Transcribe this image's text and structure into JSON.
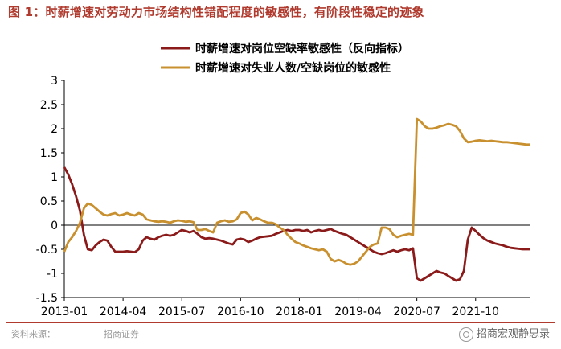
{
  "header": {
    "title": "图 1：时薪增速对劳动力市场结构性错配程度的敏感性，有阶段性稳定的迹象"
  },
  "footer": {
    "source": "资料来源：",
    "source_org": "招商证券",
    "watermark": "招商宏观静思录"
  },
  "chart_data": {
    "type": "line",
    "title": "",
    "xlabel": "",
    "ylabel": "",
    "ylim": [
      -1.5,
      3
    ],
    "yticks": [
      "3",
      "2.5",
      "2",
      "1.5",
      "1",
      "0.5",
      "0",
      "-0.5",
      "-1",
      "-1.5"
    ],
    "xticks": [
      "2013-01",
      "2014-04",
      "2015-07",
      "2016-10",
      "2018-01",
      "2019-04",
      "2020-07",
      "2021-10"
    ],
    "xlim": [
      "2013-01",
      "2022-12"
    ],
    "grid": false,
    "legend_position": "top",
    "series": [
      {
        "name": "时薪增速对岗位空缺率敏感性（反向指标）",
        "color": "#8b1a1a",
        "points": [
          [
            "2013-01",
            1.2
          ],
          [
            "2013-02",
            1.05
          ],
          [
            "2013-03",
            0.85
          ],
          [
            "2013-04",
            0.6
          ],
          [
            "2013-05",
            0.3
          ],
          [
            "2013-06",
            -0.2
          ],
          [
            "2013-07",
            -0.5
          ],
          [
            "2013-08",
            -0.52
          ],
          [
            "2013-09",
            -0.42
          ],
          [
            "2013-10",
            -0.35
          ],
          [
            "2013-11",
            -0.3
          ],
          [
            "2013-12",
            -0.32
          ],
          [
            "2014-01",
            -0.45
          ],
          [
            "2014-02",
            -0.55
          ],
          [
            "2014-03",
            -0.55
          ],
          [
            "2014-04",
            -0.55
          ],
          [
            "2014-05",
            -0.54
          ],
          [
            "2014-06",
            -0.55
          ],
          [
            "2014-07",
            -0.56
          ],
          [
            "2014-08",
            -0.5
          ],
          [
            "2014-09",
            -0.32
          ],
          [
            "2014-10",
            -0.25
          ],
          [
            "2014-11",
            -0.28
          ],
          [
            "2014-12",
            -0.3
          ],
          [
            "2015-01",
            -0.25
          ],
          [
            "2015-02",
            -0.22
          ],
          [
            "2015-03",
            -0.2
          ],
          [
            "2015-04",
            -0.22
          ],
          [
            "2015-05",
            -0.2
          ],
          [
            "2015-06",
            -0.15
          ],
          [
            "2015-07",
            -0.1
          ],
          [
            "2015-08",
            -0.12
          ],
          [
            "2015-09",
            -0.15
          ],
          [
            "2015-10",
            -0.12
          ],
          [
            "2015-11",
            -0.18
          ],
          [
            "2015-12",
            -0.25
          ],
          [
            "2016-01",
            -0.28
          ],
          [
            "2016-02",
            -0.27
          ],
          [
            "2016-03",
            -0.28
          ],
          [
            "2016-04",
            -0.3
          ],
          [
            "2016-05",
            -0.32
          ],
          [
            "2016-06",
            -0.35
          ],
          [
            "2016-07",
            -0.38
          ],
          [
            "2016-08",
            -0.4
          ],
          [
            "2016-09",
            -0.3
          ],
          [
            "2016-10",
            -0.28
          ],
          [
            "2016-11",
            -0.3
          ],
          [
            "2016-12",
            -0.35
          ],
          [
            "2017-01",
            -0.32
          ],
          [
            "2017-02",
            -0.28
          ],
          [
            "2017-03",
            -0.25
          ],
          [
            "2017-04",
            -0.24
          ],
          [
            "2017-05",
            -0.23
          ],
          [
            "2017-06",
            -0.22
          ],
          [
            "2017-07",
            -0.18
          ],
          [
            "2017-08",
            -0.15
          ],
          [
            "2017-09",
            -0.12
          ],
          [
            "2017-10",
            -0.1
          ],
          [
            "2017-11",
            -0.12
          ],
          [
            "2017-12",
            -0.1
          ],
          [
            "2018-01",
            -0.1
          ],
          [
            "2018-02",
            -0.12
          ],
          [
            "2018-03",
            -0.1
          ],
          [
            "2018-04",
            -0.15
          ],
          [
            "2018-05",
            -0.12
          ],
          [
            "2018-06",
            -0.1
          ],
          [
            "2018-07",
            -0.12
          ],
          [
            "2018-08",
            -0.1
          ],
          [
            "2018-09",
            -0.08
          ],
          [
            "2018-10",
            -0.12
          ],
          [
            "2018-11",
            -0.15
          ],
          [
            "2018-12",
            -0.18
          ],
          [
            "2019-01",
            -0.2
          ],
          [
            "2019-02",
            -0.25
          ],
          [
            "2019-03",
            -0.3
          ],
          [
            "2019-04",
            -0.35
          ],
          [
            "2019-05",
            -0.4
          ],
          [
            "2019-06",
            -0.45
          ],
          [
            "2019-07",
            -0.5
          ],
          [
            "2019-08",
            -0.55
          ],
          [
            "2019-09",
            -0.58
          ],
          [
            "2019-10",
            -0.6
          ],
          [
            "2019-11",
            -0.58
          ],
          [
            "2019-12",
            -0.55
          ],
          [
            "2020-01",
            -0.52
          ],
          [
            "2020-02",
            -0.55
          ],
          [
            "2020-03",
            -0.52
          ],
          [
            "2020-04",
            -0.5
          ],
          [
            "2020-05",
            -0.52
          ],
          [
            "2020-06",
            -0.48
          ],
          [
            "2020-07",
            -1.1
          ],
          [
            "2020-08",
            -1.15
          ],
          [
            "2020-09",
            -1.1
          ],
          [
            "2020-10",
            -1.05
          ],
          [
            "2020-11",
            -1.0
          ],
          [
            "2020-12",
            -0.95
          ],
          [
            "2021-01",
            -0.98
          ],
          [
            "2021-02",
            -1.0
          ],
          [
            "2021-03",
            -1.05
          ],
          [
            "2021-04",
            -1.1
          ],
          [
            "2021-05",
            -1.15
          ],
          [
            "2021-06",
            -1.12
          ],
          [
            "2021-07",
            -0.95
          ],
          [
            "2021-08",
            -0.3
          ],
          [
            "2021-09",
            -0.05
          ],
          [
            "2021-10",
            -0.12
          ],
          [
            "2021-11",
            -0.2
          ],
          [
            "2021-12",
            -0.27
          ],
          [
            "2022-01",
            -0.32
          ],
          [
            "2022-02",
            -0.35
          ],
          [
            "2022-03",
            -0.38
          ],
          [
            "2022-04",
            -0.4
          ],
          [
            "2022-05",
            -0.42
          ],
          [
            "2022-06",
            -0.45
          ],
          [
            "2022-07",
            -0.47
          ],
          [
            "2022-08",
            -0.48
          ],
          [
            "2022-09",
            -0.49
          ],
          [
            "2022-10",
            -0.5
          ],
          [
            "2022-11",
            -0.5
          ],
          [
            "2022-12",
            -0.5
          ]
        ]
      },
      {
        "name": "时薪增速对失业人数/空缺岗位的敏感性",
        "color": "#c8902f",
        "points": [
          [
            "2013-01",
            -0.55
          ],
          [
            "2013-02",
            -0.35
          ],
          [
            "2013-03",
            -0.25
          ],
          [
            "2013-04",
            -0.12
          ],
          [
            "2013-05",
            0.05
          ],
          [
            "2013-06",
            0.35
          ],
          [
            "2013-07",
            0.45
          ],
          [
            "2013-08",
            0.42
          ],
          [
            "2013-09",
            0.35
          ],
          [
            "2013-10",
            0.28
          ],
          [
            "2013-11",
            0.22
          ],
          [
            "2013-12",
            0.2
          ],
          [
            "2014-01",
            0.23
          ],
          [
            "2014-02",
            0.25
          ],
          [
            "2014-03",
            0.2
          ],
          [
            "2014-04",
            0.22
          ],
          [
            "2014-05",
            0.25
          ],
          [
            "2014-06",
            0.22
          ],
          [
            "2014-07",
            0.2
          ],
          [
            "2014-08",
            0.25
          ],
          [
            "2014-09",
            0.22
          ],
          [
            "2014-10",
            0.12
          ],
          [
            "2014-11",
            0.1
          ],
          [
            "2014-12",
            0.08
          ],
          [
            "2015-01",
            0.07
          ],
          [
            "2015-02",
            0.08
          ],
          [
            "2015-03",
            0.07
          ],
          [
            "2015-04",
            0.05
          ],
          [
            "2015-05",
            0.08
          ],
          [
            "2015-06",
            0.1
          ],
          [
            "2015-07",
            0.09
          ],
          [
            "2015-08",
            0.07
          ],
          [
            "2015-09",
            0.08
          ],
          [
            "2015-10",
            0.06
          ],
          [
            "2015-11",
            -0.1
          ],
          [
            "2015-12",
            -0.1
          ],
          [
            "2016-01",
            -0.08
          ],
          [
            "2016-02",
            -0.12
          ],
          [
            "2016-03",
            -0.15
          ],
          [
            "2016-04",
            0.05
          ],
          [
            "2016-05",
            0.08
          ],
          [
            "2016-06",
            0.1
          ],
          [
            "2016-07",
            0.07
          ],
          [
            "2016-08",
            0.08
          ],
          [
            "2016-09",
            0.12
          ],
          [
            "2016-10",
            0.25
          ],
          [
            "2016-11",
            0.28
          ],
          [
            "2016-12",
            0.22
          ],
          [
            "2017-01",
            0.1
          ],
          [
            "2017-02",
            0.15
          ],
          [
            "2017-03",
            0.12
          ],
          [
            "2017-04",
            0.08
          ],
          [
            "2017-05",
            0.05
          ],
          [
            "2017-06",
            0.05
          ],
          [
            "2017-07",
            0.02
          ],
          [
            "2017-08",
            -0.05
          ],
          [
            "2017-09",
            -0.1
          ],
          [
            "2017-10",
            -0.2
          ],
          [
            "2017-11",
            -0.28
          ],
          [
            "2017-12",
            -0.35
          ],
          [
            "2018-01",
            -0.38
          ],
          [
            "2018-02",
            -0.42
          ],
          [
            "2018-03",
            -0.45
          ],
          [
            "2018-04",
            -0.48
          ],
          [
            "2018-05",
            -0.5
          ],
          [
            "2018-06",
            -0.52
          ],
          [
            "2018-07",
            -0.5
          ],
          [
            "2018-08",
            -0.55
          ],
          [
            "2018-09",
            -0.7
          ],
          [
            "2018-10",
            -0.75
          ],
          [
            "2018-11",
            -0.72
          ],
          [
            "2018-12",
            -0.75
          ],
          [
            "2019-01",
            -0.8
          ],
          [
            "2019-02",
            -0.82
          ],
          [
            "2019-03",
            -0.8
          ],
          [
            "2019-04",
            -0.75
          ],
          [
            "2019-05",
            -0.65
          ],
          [
            "2019-06",
            -0.55
          ],
          [
            "2019-07",
            -0.45
          ],
          [
            "2019-08",
            -0.4
          ],
          [
            "2019-09",
            -0.38
          ],
          [
            "2019-10",
            -0.05
          ],
          [
            "2019-11",
            -0.05
          ],
          [
            "2019-12",
            -0.08
          ],
          [
            "2020-01",
            -0.2
          ],
          [
            "2020-02",
            -0.25
          ],
          [
            "2020-03",
            -0.22
          ],
          [
            "2020-04",
            -0.2
          ],
          [
            "2020-05",
            -0.18
          ],
          [
            "2020-06",
            -0.2
          ],
          [
            "2020-07",
            2.2
          ],
          [
            "2020-08",
            2.15
          ],
          [
            "2020-09",
            2.05
          ],
          [
            "2020-10",
            2.0
          ],
          [
            "2020-11",
            2.0
          ],
          [
            "2020-12",
            2.02
          ],
          [
            "2021-01",
            2.05
          ],
          [
            "2021-02",
            2.07
          ],
          [
            "2021-03",
            2.1
          ],
          [
            "2021-04",
            2.08
          ],
          [
            "2021-05",
            2.05
          ],
          [
            "2021-06",
            1.95
          ],
          [
            "2021-07",
            1.8
          ],
          [
            "2021-08",
            1.72
          ],
          [
            "2021-09",
            1.73
          ],
          [
            "2021-10",
            1.75
          ],
          [
            "2021-11",
            1.76
          ],
          [
            "2021-12",
            1.75
          ],
          [
            "2022-01",
            1.74
          ],
          [
            "2022-02",
            1.75
          ],
          [
            "2022-03",
            1.74
          ],
          [
            "2022-04",
            1.73
          ],
          [
            "2022-05",
            1.72
          ],
          [
            "2022-06",
            1.72
          ],
          [
            "2022-07",
            1.71
          ],
          [
            "2022-08",
            1.7
          ],
          [
            "2022-09",
            1.69
          ],
          [
            "2022-10",
            1.68
          ],
          [
            "2022-11",
            1.67
          ],
          [
            "2022-12",
            1.67
          ]
        ]
      }
    ]
  }
}
